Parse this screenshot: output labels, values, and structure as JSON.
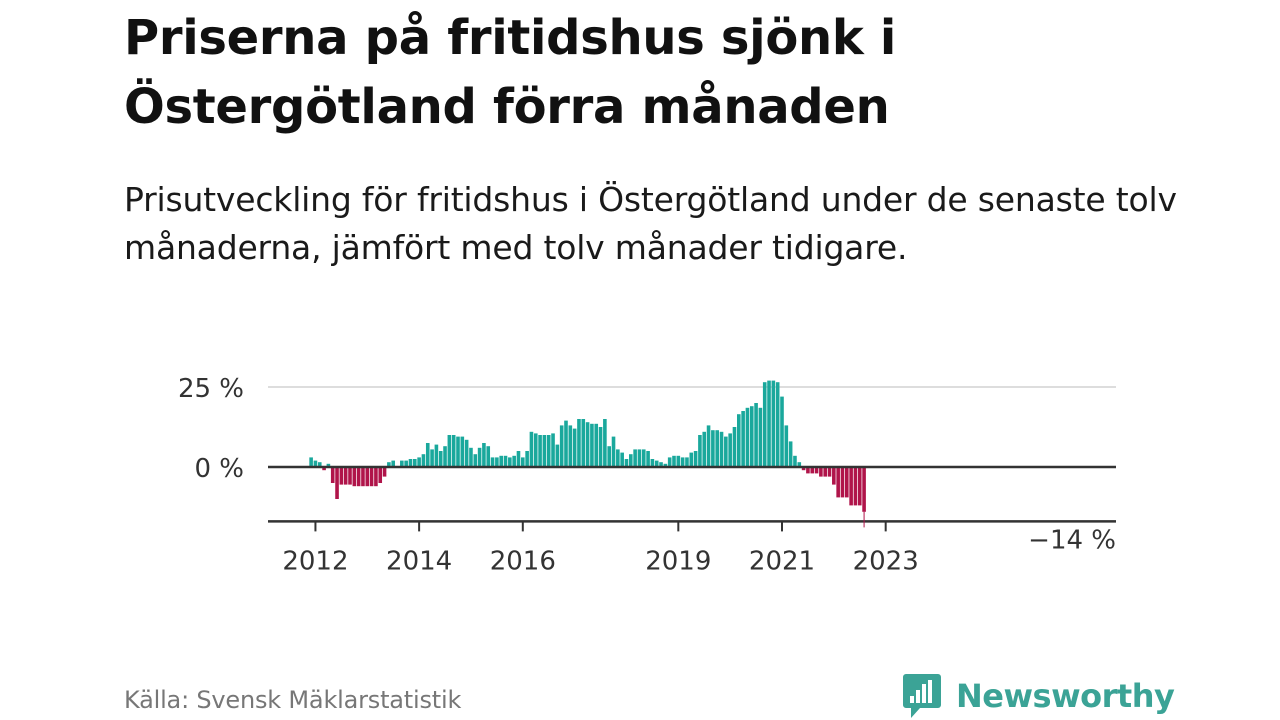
{
  "header": {
    "title": "Priserna på fritidshus sjönk i Östergötland förra månaden",
    "subtitle": "Prisutveckling för fritidshus i Östergötland under de senaste tolv månaderna, jämfört med tolv månader tidigare."
  },
  "footer": {
    "source": "Källa: Svensk Mäklarstatistik",
    "brand": "Newsworthy"
  },
  "colors": {
    "positive": "#1aa89c",
    "negative": "#b0144a",
    "gridline": "#dddddd",
    "zeroline": "#333333",
    "brand": "#3ba396"
  },
  "chart_data": {
    "type": "bar",
    "title": "Priserna på fritidshus sjönk i Östergötland förra månaden",
    "subtitle": "Prisutveckling för fritidshus i Östergötland under de senaste tolv månaderna, jämfört med tolv månader tidigare.",
    "xlabel": "",
    "ylabel": "",
    "unit": "%",
    "start": "2011-11",
    "ylim": [
      -17,
      27
    ],
    "y_ticks": [
      {
        "value": 0,
        "label": "0 %"
      },
      {
        "value": 25,
        "label": "25 %"
      }
    ],
    "x_ticks": [
      {
        "year": 2012,
        "label": "2012"
      },
      {
        "year": 2014,
        "label": "2014"
      },
      {
        "year": 2016,
        "label": "2016"
      },
      {
        "year": 2019,
        "label": "2019"
      },
      {
        "year": 2021,
        "label": "2021"
      },
      {
        "year": 2023,
        "label": "2023"
      }
    ],
    "end_label": "−14 %",
    "grid": true,
    "values": [
      0,
      3,
      2,
      1.5,
      -1,
      1,
      -5,
      -10,
      -5.5,
      -5.5,
      -5.5,
      -6,
      -6,
      -6,
      -6,
      -6,
      -6,
      -5,
      -3,
      1.5,
      2,
      0,
      2,
      2,
      2.5,
      2.5,
      3,
      4,
      7.5,
      5.5,
      7,
      5,
      6.5,
      10,
      10,
      9.5,
      9.5,
      8.5,
      6,
      4,
      6,
      7.5,
      6.5,
      3,
      3,
      3.5,
      3.5,
      3,
      3.5,
      5,
      3,
      5,
      11,
      10.5,
      10,
      10,
      10,
      10.5,
      7,
      13,
      14.5,
      13,
      12,
      15,
      15,
      14,
      13.5,
      13.5,
      12.5,
      15,
      6.5,
      9.5,
      5.5,
      4.5,
      2.5,
      4,
      5.5,
      5.5,
      5.5,
      5,
      2.5,
      2,
      1.5,
      1,
      3,
      3.5,
      3.5,
      3,
      3,
      4.5,
      5,
      10,
      11,
      13,
      11.5,
      11.5,
      11,
      9.5,
      10.5,
      12.5,
      16.5,
      17.5,
      18.5,
      19,
      20,
      18.5,
      26.5,
      27,
      27,
      26.5,
      22,
      13,
      8,
      3.5,
      1.5,
      -1,
      -2,
      -2,
      -2,
      -3,
      -3,
      -3,
      -5.5,
      -9.5,
      -9.5,
      -9.5,
      -12,
      -12,
      -12,
      -14
    ]
  }
}
